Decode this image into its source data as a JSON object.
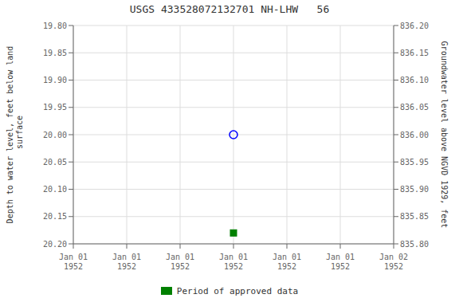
{
  "chart_data": {
    "type": "scatter",
    "title": "USGS 433528072132701 NH-LHW   56",
    "ylabel": "Depth to water level, feet below land\n surface",
    "y2label": "Groundwater level above NGVD 1929, feet",
    "categories": [
      "Jan 01\n1952",
      "Jan 01\n1952",
      "Jan 01\n1952",
      "Jan 01\n1952",
      "Jan 01\n1952",
      "Jan 01\n1952",
      "Jan 02\n1952"
    ],
    "series": [
      {
        "color": "#0000ff",
        "marker": "circle",
        "values": [
          null,
          null,
          null,
          20.0,
          null,
          null,
          null
        ]
      },
      {
        "name": "Period of approved data",
        "color": "#008000",
        "marker": "square",
        "values": [
          null,
          null,
          null,
          20.18,
          null,
          null,
          null
        ]
      }
    ],
    "ylim": [
      20.2,
      19.8
    ],
    "yticks": [
      {
        "value": 19.8,
        "label": "19.80"
      },
      {
        "value": 19.85,
        "label": "19.85"
      },
      {
        "value": 19.9,
        "label": "19.90"
      },
      {
        "value": 19.95,
        "label": "19.95"
      },
      {
        "value": 20.0,
        "label": "20.00"
      },
      {
        "value": 20.05,
        "label": "20.05"
      },
      {
        "value": 20.1,
        "label": "20.10"
      },
      {
        "value": 20.15,
        "label": "20.15"
      },
      {
        "value": 20.2,
        "label": "20.20"
      }
    ],
    "y2lim": [
      835.8,
      836.2
    ],
    "y2ticks": [
      {
        "value": 836.2,
        "label": "836.20"
      },
      {
        "value": 836.15,
        "label": "836.15"
      },
      {
        "value": 836.1,
        "label": "836.10"
      },
      {
        "value": 836.05,
        "label": "836.05"
      },
      {
        "value": 836.0,
        "label": "836.00"
      },
      {
        "value": 835.95,
        "label": "835.95"
      },
      {
        "value": 835.9,
        "label": "835.90"
      },
      {
        "value": 835.85,
        "label": "835.85"
      },
      {
        "value": 835.8,
        "label": "835.80"
      }
    ],
    "grid": true,
    "legend": "bottom"
  }
}
